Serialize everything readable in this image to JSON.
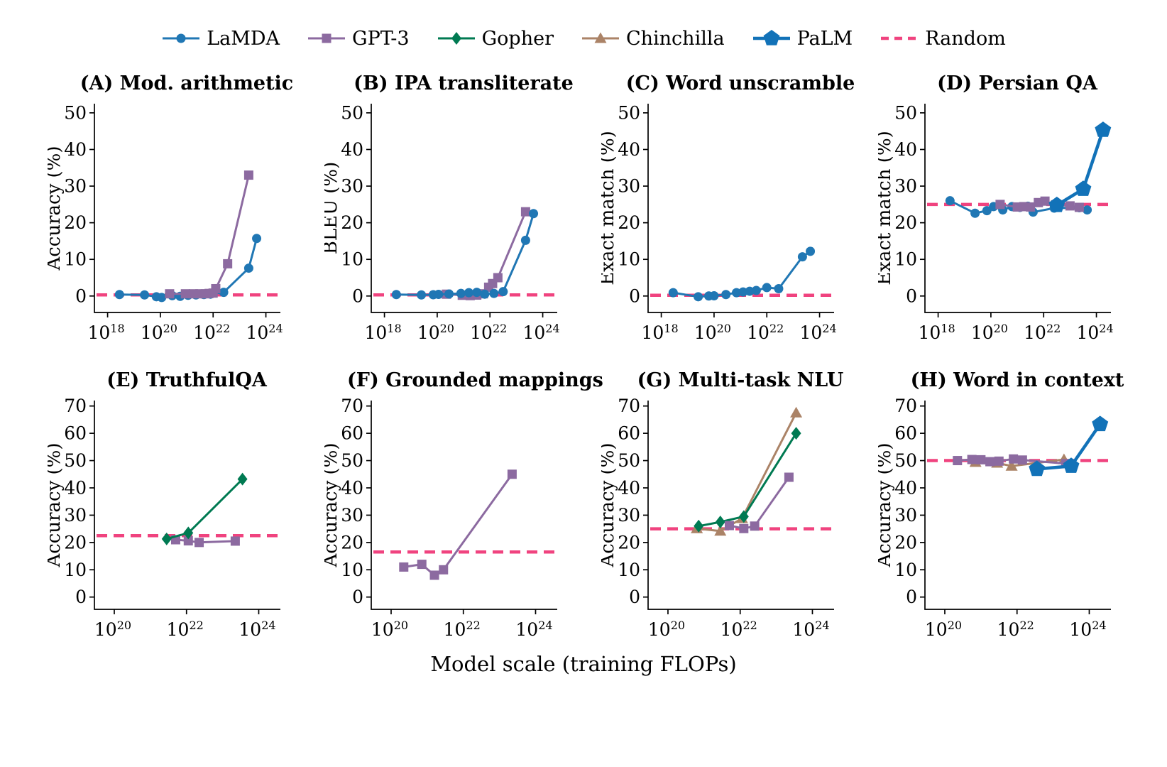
{
  "legend": {
    "items": [
      "LaMDA",
      "GPT-3",
      "Gopher",
      "Chinchilla",
      "PaLM",
      "Random"
    ]
  },
  "colors": {
    "lamda_blue": "#2077b4",
    "gpt3_purple": "#8c6aa0",
    "gopher_green": "#007a52",
    "chinchilla_tan": "#ab8367",
    "palm_blue": "#1272b8",
    "random_pink": "#f0437f",
    "axis_black": "#000000"
  },
  "chart_data": {
    "type": "line",
    "xscale": "log10",
    "xlabel": "Model scale (training FLOPs)",
    "series_styles": {
      "LaMDA": {
        "color": "#2077b4",
        "marker": "circle",
        "lw": 3
      },
      "GPT-3": {
        "color": "#8c6aa0",
        "marker": "square",
        "lw": 3
      },
      "Gopher": {
        "color": "#007a52",
        "marker": "diamond",
        "lw": 3
      },
      "Chinchilla": {
        "color": "#ab8367",
        "marker": "triangle",
        "lw": 3
      },
      "PaLM": {
        "color": "#1272b8",
        "marker": "pentagon",
        "lw": 4.5
      },
      "Random": {
        "color": "#f0437f",
        "marker": "dash",
        "lw": 4.5
      }
    },
    "panels": [
      {
        "title": "(A) Mod. arithmetic",
        "ylabel": "Accuracy (%)",
        "xlim": [
          17.5,
          24.55
        ],
        "ylim": [
          -4.5,
          52.5
        ],
        "xticks": [
          18,
          20,
          22,
          24
        ],
        "yticks": [
          0,
          10,
          20,
          30,
          40,
          50
        ],
        "random_baseline": 0.3,
        "series": [
          {
            "name": "LaMDA",
            "points": [
              [
                18.45,
                0.4
              ],
              [
                19.4,
                0.3
              ],
              [
                19.85,
                -0.2
              ],
              [
                20.05,
                -0.4
              ],
              [
                20.45,
                0.1
              ],
              [
                20.75,
                -0.1
              ],
              [
                21.05,
                0.2
              ],
              [
                21.35,
                0.3
              ],
              [
                21.65,
                0.4
              ],
              [
                21.9,
                0.5
              ],
              [
                22.4,
                1.0
              ],
              [
                23.35,
                7.6
              ],
              [
                23.65,
                15.7
              ]
            ]
          },
          {
            "name": "GPT-3",
            "points": [
              [
                20.35,
                0.6
              ],
              [
                20.95,
                0.6
              ],
              [
                21.25,
                0.6
              ],
              [
                21.5,
                0.6
              ],
              [
                21.7,
                0.6
              ],
              [
                21.85,
                0.7
              ],
              [
                22.0,
                0.8
              ],
              [
                22.1,
                2.0
              ],
              [
                22.55,
                8.8
              ],
              [
                23.35,
                33.0
              ]
            ]
          }
        ]
      },
      {
        "title": "(B) IPA transliterate",
        "ylabel": "BLEU (%)",
        "xlim": [
          17.5,
          24.55
        ],
        "ylim": [
          -4.5,
          52.5
        ],
        "xticks": [
          18,
          20,
          22,
          24
        ],
        "yticks": [
          0,
          10,
          20,
          30,
          40,
          50
        ],
        "random_baseline": 0.3,
        "series": [
          {
            "name": "GPT-3",
            "points": [
              [
                20.35,
                0.5
              ],
              [
                20.95,
                0.2
              ],
              [
                21.25,
                0.1
              ],
              [
                21.5,
                0.25
              ],
              [
                21.75,
                0.6
              ],
              [
                21.95,
                2.4
              ],
              [
                22.1,
                3.4
              ],
              [
                22.3,
                5.0
              ],
              [
                23.35,
                23.0
              ]
            ]
          },
          {
            "name": "LaMDA",
            "points": [
              [
                18.45,
                0.4
              ],
              [
                19.4,
                0.3
              ],
              [
                19.85,
                0.35
              ],
              [
                20.05,
                0.45
              ],
              [
                20.45,
                0.55
              ],
              [
                20.9,
                0.7
              ],
              [
                21.2,
                0.9
              ],
              [
                21.5,
                1.0
              ],
              [
                21.8,
                0.5
              ],
              [
                22.15,
                0.7
              ],
              [
                22.5,
                1.2
              ],
              [
                23.35,
                15.2
              ],
              [
                23.65,
                22.5
              ]
            ]
          }
        ]
      },
      {
        "title": "(C) Word unscramble",
        "ylabel": "Exact match (%)",
        "xlim": [
          17.5,
          24.55
        ],
        "ylim": [
          -4.5,
          52.5
        ],
        "xticks": [
          18,
          20,
          22,
          24
        ],
        "yticks": [
          0,
          10,
          20,
          30,
          40,
          50
        ],
        "random_baseline": 0.2,
        "series": [
          {
            "name": "LaMDA",
            "points": [
              [
                18.45,
                0.9
              ],
              [
                19.4,
                -0.2
              ],
              [
                19.8,
                0.0
              ],
              [
                20.0,
                0.05
              ],
              [
                20.45,
                0.4
              ],
              [
                20.85,
                0.9
              ],
              [
                21.1,
                1.1
              ],
              [
                21.35,
                1.3
              ],
              [
                21.6,
                1.5
              ],
              [
                22.0,
                2.3
              ],
              [
                22.45,
                2.0
              ],
              [
                23.35,
                10.7
              ],
              [
                23.65,
                12.2
              ]
            ]
          }
        ]
      },
      {
        "title": "(D) Persian QA",
        "ylabel": "Exact match (%)",
        "xlim": [
          17.5,
          24.55
        ],
        "ylim": [
          -4.5,
          52.5
        ],
        "xticks": [
          18,
          20,
          22,
          24
        ],
        "yticks": [
          0,
          10,
          20,
          30,
          40,
          50
        ],
        "random_baseline": 25,
        "series": [
          {
            "name": "LaMDA",
            "points": [
              [
                18.45,
                26.0
              ],
              [
                19.4,
                22.6
              ],
              [
                19.85,
                23.3
              ],
              [
                20.1,
                24.4
              ],
              [
                20.45,
                23.5
              ],
              [
                20.8,
                24.4
              ],
              [
                21.1,
                24.2
              ],
              [
                21.4,
                24.5
              ],
              [
                21.6,
                22.9
              ],
              [
                22.4,
                24.0
              ],
              [
                23.35,
                24.1
              ],
              [
                23.65,
                23.5
              ]
            ]
          },
          {
            "name": "GPT-3",
            "points": [
              [
                20.35,
                25.0
              ],
              [
                21.0,
                24.3
              ],
              [
                21.25,
                24.4
              ],
              [
                21.5,
                24.3
              ],
              [
                21.8,
                25.5
              ],
              [
                22.05,
                25.9
              ],
              [
                22.45,
                24.9
              ],
              [
                23.0,
                24.6
              ],
              [
                23.35,
                24.2
              ]
            ]
          },
          {
            "name": "PaLM",
            "points": [
              [
                22.5,
                24.8
              ],
              [
                23.5,
                29.2
              ],
              [
                24.25,
                45.3
              ]
            ]
          }
        ]
      },
      {
        "title": "(E) TruthfulQA",
        "ylabel": "Accuracy (%)",
        "xlim": [
          19.45,
          24.6
        ],
        "ylim": [
          -4.5,
          72
        ],
        "xticks": [
          20,
          22,
          24
        ],
        "yticks": [
          0,
          10,
          20,
          30,
          40,
          50,
          60,
          70
        ],
        "random_baseline": 22.5,
        "series": [
          {
            "name": "GPT-3",
            "points": [
              [
                21.7,
                21.0
              ],
              [
                22.05,
                20.6
              ],
              [
                22.35,
                20.0
              ],
              [
                23.35,
                20.5
              ]
            ]
          },
          {
            "name": "Gopher",
            "points": [
              [
                21.45,
                21.3
              ],
              [
                22.05,
                23.5
              ],
              [
                23.55,
                43.2
              ]
            ]
          }
        ]
      },
      {
        "title": "(F) Grounded mappings",
        "ylabel": "Accuracy (%)",
        "xlim": [
          19.45,
          24.6
        ],
        "ylim": [
          -4.5,
          72
        ],
        "xticks": [
          20,
          22,
          24
        ],
        "yticks": [
          0,
          10,
          20,
          30,
          40,
          50,
          60,
          70
        ],
        "random_baseline": 16.5,
        "series": [
          {
            "name": "GPT-3",
            "points": [
              [
                20.35,
                11.0
              ],
              [
                20.85,
                12.0
              ],
              [
                21.2,
                8.0
              ],
              [
                21.45,
                10.0
              ],
              [
                23.35,
                45.0
              ]
            ]
          }
        ]
      },
      {
        "title": "(G) Multi-task NLU",
        "ylabel": "Accuracy (%)",
        "xlim": [
          19.45,
          24.6
        ],
        "ylim": [
          -4.5,
          72
        ],
        "xticks": [
          20,
          22,
          24
        ],
        "yticks": [
          0,
          10,
          20,
          30,
          40,
          50,
          60,
          70
        ],
        "random_baseline": 25,
        "series": [
          {
            "name": "Chinchilla",
            "points": [
              [
                20.8,
                25.1
              ],
              [
                21.45,
                24.2
              ],
              [
                22.05,
                28.8
              ],
              [
                23.55,
                67.5
              ]
            ]
          },
          {
            "name": "Gopher",
            "points": [
              [
                20.85,
                26.0
              ],
              [
                21.45,
                27.5
              ],
              [
                22.1,
                29.5
              ],
              [
                23.55,
                60.0
              ]
            ]
          },
          {
            "name": "GPT-3",
            "points": [
              [
                21.7,
                26.2
              ],
              [
                22.1,
                25.1
              ],
              [
                22.4,
                26.0
              ],
              [
                23.35,
                43.9
              ]
            ]
          }
        ]
      },
      {
        "title": "(H) Word in context",
        "ylabel": "Accuracy (%)",
        "xlim": [
          19.45,
          24.6
        ],
        "ylim": [
          -4.5,
          72
        ],
        "xticks": [
          20,
          22,
          24
        ],
        "yticks": [
          0,
          10,
          20,
          30,
          40,
          50,
          60,
          70
        ],
        "random_baseline": 50,
        "series": [
          {
            "name": "Chinchilla",
            "points": [
              [
                20.85,
                49.4
              ],
              [
                21.45,
                49.1
              ],
              [
                21.85,
                48.0
              ],
              [
                23.3,
                50.4
              ]
            ]
          },
          {
            "name": "GPT-3",
            "points": [
              [
                20.35,
                50.0
              ],
              [
                20.75,
                50.4
              ],
              [
                21.0,
                50.3
              ],
              [
                21.25,
                49.6
              ],
              [
                21.5,
                49.8
              ],
              [
                21.9,
                50.6
              ],
              [
                22.15,
                50.2
              ],
              [
                23.35,
                48.9
              ]
            ]
          },
          {
            "name": "PaLM",
            "points": [
              [
                22.55,
                46.9
              ],
              [
                23.5,
                48.0
              ],
              [
                24.3,
                63.3
              ]
            ]
          }
        ]
      }
    ]
  }
}
